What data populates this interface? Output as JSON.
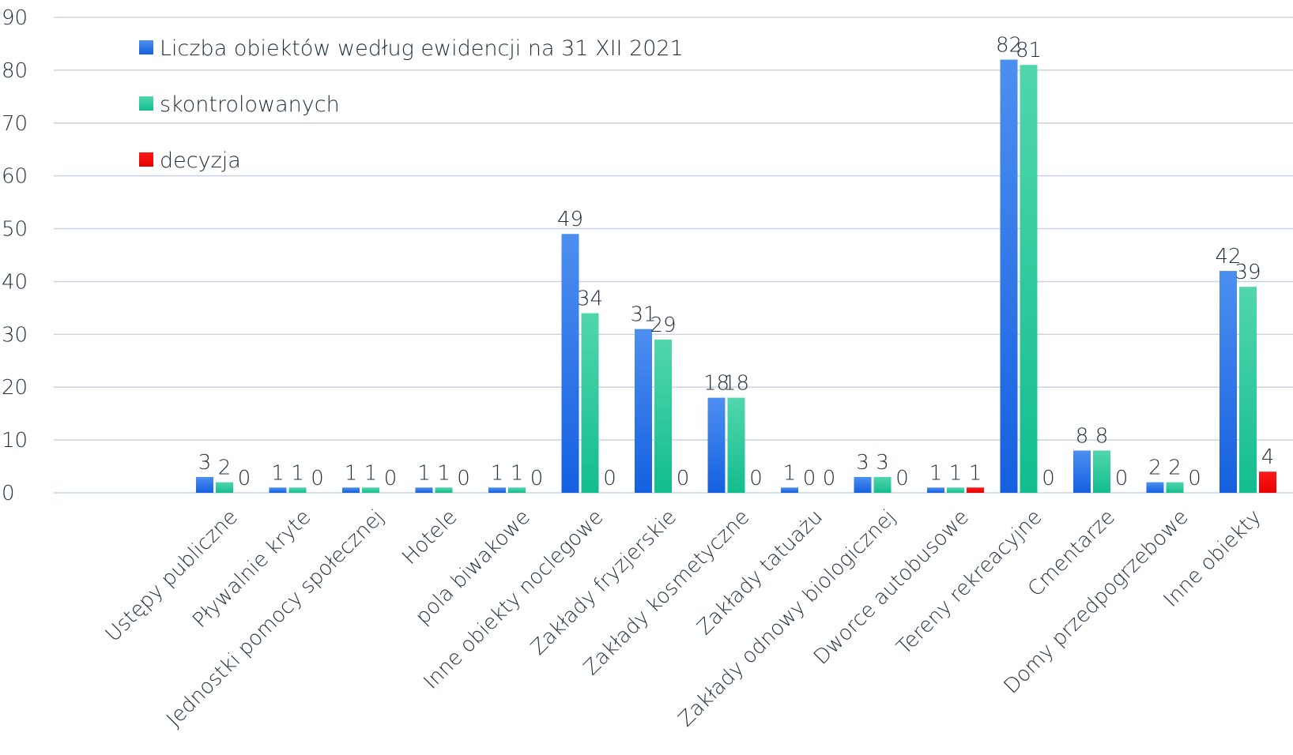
{
  "chart_data": {
    "type": "bar",
    "categories": [
      "Ustępy publiczne",
      "Pływalnie kryte",
      "Jednostki pomocy społecznej",
      "Hotele",
      "pola biwakowe",
      "Inne obiekty noclegowe",
      "Zakłady fryzjerskie",
      "Zakłady kosmetyczne",
      "Zakłady tatuażu",
      "Zakłady odnowy biologicznej",
      "Dworce autobusowe",
      "Tereny rekreacyjne",
      "Cmentarze",
      "Domy przedpogrzebowe",
      "Inne obiekty"
    ],
    "series": [
      {
        "name": "Liczba obiektów według ewidencji na 31 XII 2021",
        "color": "#1e6fe8",
        "values": [
          3,
          1,
          1,
          1,
          1,
          49,
          31,
          18,
          1,
          3,
          1,
          82,
          8,
          2,
          42
        ]
      },
      {
        "name": "skontrolowanych",
        "color": "#1fc99a",
        "values": [
          2,
          1,
          1,
          1,
          1,
          34,
          29,
          18,
          0,
          3,
          1,
          81,
          8,
          2,
          39
        ]
      },
      {
        "name": "decyzja",
        "color": "#ff0000",
        "values": [
          0,
          0,
          0,
          0,
          0,
          0,
          0,
          0,
          0,
          0,
          1,
          0,
          0,
          0,
          4
        ]
      }
    ],
    "ylim": [
      0,
      90
    ],
    "yticks": [
      0,
      10,
      20,
      30,
      40,
      50,
      60,
      70,
      80,
      90
    ],
    "title": "",
    "xlabel": "",
    "ylabel": "",
    "grid": true,
    "legend_position": "top-left"
  }
}
